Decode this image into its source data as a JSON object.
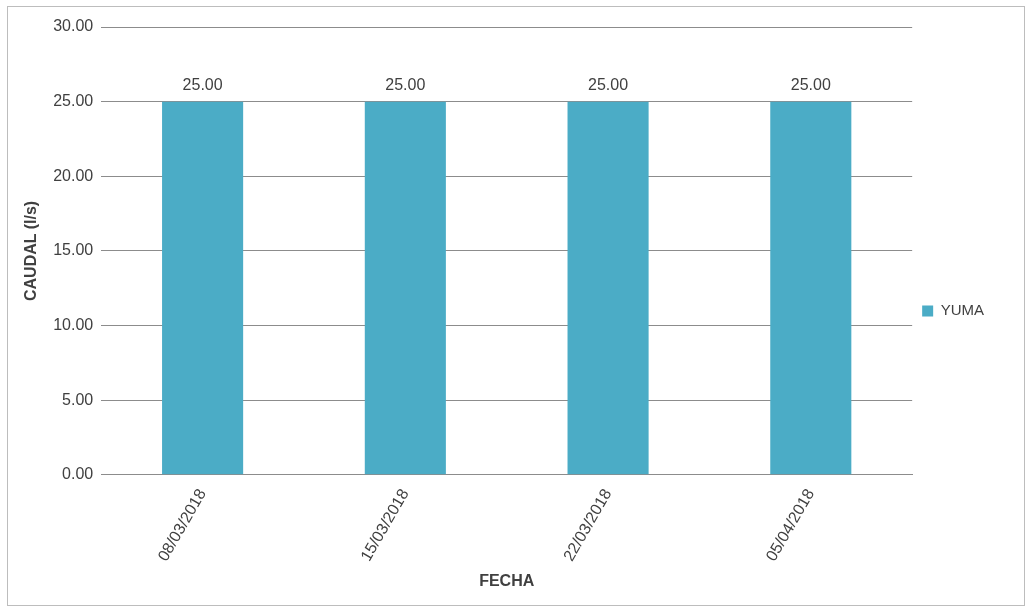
{
  "chart_data": {
    "type": "bar",
    "xlabel": "FECHA",
    "ylabel": "CAUDAL (l/s)",
    "categories": [
      "08/03/2018",
      "15/03/2018",
      "22/03/2018",
      "05/04/2018"
    ],
    "series": [
      {
        "name": "YUMA",
        "color": "#4bacc6",
        "values": [
          25,
          25,
          25,
          25
        ],
        "value_labels": [
          "25.00",
          "25.00",
          "25.00",
          "25.00"
        ]
      }
    ],
    "ylim": [
      0,
      30
    ],
    "yticks": [
      {
        "value": 0,
        "label": "0.00"
      },
      {
        "value": 5,
        "label": "5.00"
      },
      {
        "value": 10,
        "label": "10.00"
      },
      {
        "value": 15,
        "label": "15.00"
      },
      {
        "value": 20,
        "label": "20.00"
      },
      {
        "value": 25,
        "label": "25.00"
      },
      {
        "value": 30,
        "label": "30.00"
      }
    ],
    "grid": "y",
    "legend": "right"
  }
}
